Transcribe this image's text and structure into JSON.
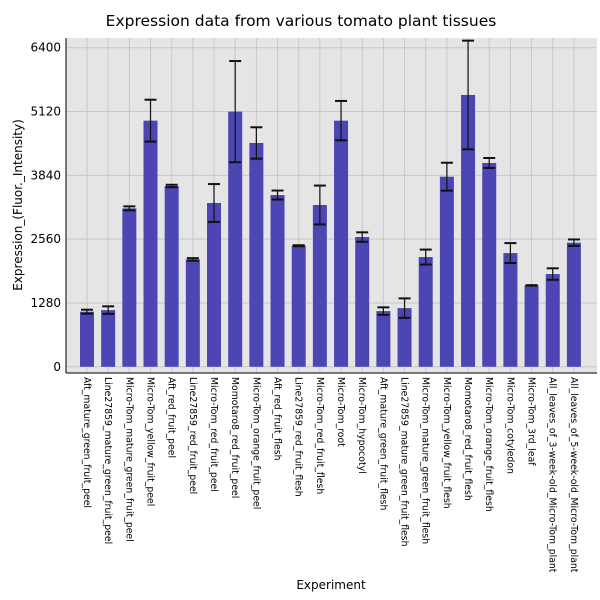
{
  "chart_data": {
    "type": "bar",
    "title": "Expression data from various tomato plant tissues",
    "xlabel": "Experiment",
    "ylabel": "Expression_(Fluor._Intensity)",
    "ylim": [
      -125,
      6595
    ],
    "yticks": [
      0,
      1280,
      2560,
      3840,
      5120,
      6400
    ],
    "grid": true,
    "bar_color": "#4b46b3",
    "background_color": "#e5e5e5",
    "categories": [
      "Aft_mature_green_fruit_peel",
      "Line27859_mature_green_fruit_peel",
      "Micro-Tom_mature_green_fruit_peel",
      "Micro-Tom_yellow_fruit_peel",
      "Aft_red_fruit_peel",
      "Line27859_red_fruit_peel",
      "Micro-Tom_red_fruit_peel",
      "Momotaro8_red_fruit_peel",
      "Micro-Tom_orange_fruit_peel",
      "Aft_red_fruit_flesh",
      "Line27859_red_fruit_flesh",
      "Micro-Tom_red_fruit_flesh",
      "Micro-Tom_root",
      "Micro-Tom_hypocotyl",
      "Aft_mature_green_fruit_flesh",
      "Line27859_mature_green_fruit_flesh",
      "Micro-Tom_mature_green_fruit_flesh",
      "Micro-Tom_yellow_fruit_flesh",
      "Momotaro8_red_fruit_flesh",
      "Micro-Tom_orange_fruit_flesh",
      "Micro-Tom_cotyledon",
      "Micro-Tom_3rd_leaf",
      "All_leaves_of_3-week-old_Micro-Tom_plant",
      "All_leaves_of_5-week-old_Micro-Tom_plant"
    ],
    "values": [
      1105,
      1137,
      3178,
      4937,
      3626,
      2154,
      3285,
      5118,
      4489,
      3445,
      2428,
      3245,
      4937,
      2602,
      1117,
      1177,
      2201,
      3813,
      5452,
      4088,
      2281,
      1632,
      1860,
      2489
    ],
    "errors": [
      40,
      75,
      40,
      420,
      25,
      25,
      380,
      1015,
      315,
      90,
      10,
      390,
      395,
      95,
      75,
      195,
      150,
      280,
      1090,
      100,
      200,
      5,
      115,
      65
    ]
  }
}
